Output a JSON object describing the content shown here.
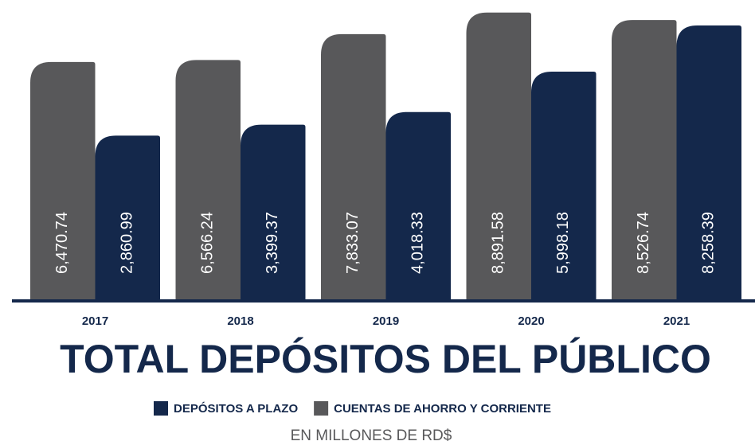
{
  "chart_data": {
    "type": "bar",
    "title": "TOTAL DEPÓSITOS DEL PÚBLICO",
    "subtitle": "EN MILLONES DE RD$",
    "categories": [
      "2017",
      "2018",
      "2019",
      "2020",
      "2021"
    ],
    "series": [
      {
        "name": "DEPÓSITOS A PLAZO",
        "color": "#14284b",
        "values": [
          2860.99,
          3399.37,
          4018.33,
          5998.18,
          8258.39
        ],
        "value_labels": [
          "2,860.99",
          "3,399.37",
          "4,018.33",
          "5,998.18",
          "8,258.39"
        ]
      },
      {
        "name": "CUENTAS DE AHORRO Y CORRIENTE",
        "color": "#58585a",
        "values": [
          6470.74,
          6566.24,
          7833.07,
          8891.58,
          8526.74
        ],
        "value_labels": [
          "6,470.74",
          "6,566.24",
          "7,833.07",
          "8,891.58",
          "8,526.74"
        ]
      }
    ],
    "ylim": [
      -5200,
      9000
    ]
  }
}
